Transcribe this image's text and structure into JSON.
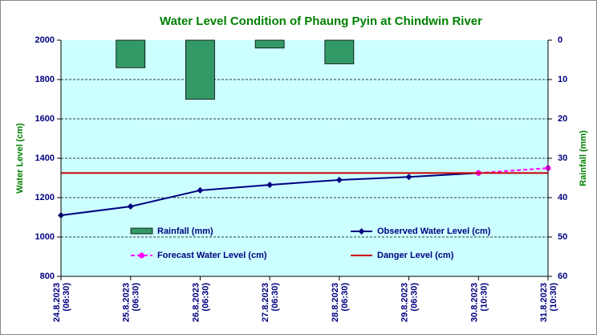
{
  "chart_data": {
    "type": "combo",
    "title": "Water Level Condition of Phaung Pyin at Chindwin River",
    "ylabel": "Water Level (cm)",
    "y2label": "Rainfall (mm)",
    "categories": [
      [
        "24.8.2023",
        "(06:30)"
      ],
      [
        "25.8.2023",
        "(06:30)"
      ],
      [
        "26.8.2023",
        "(06:30)"
      ],
      [
        "27.8.2023",
        "(06:30)"
      ],
      [
        "28.8.2023",
        "(06:30)"
      ],
      [
        "29.8.2023",
        "(06:30)"
      ],
      [
        "30.8.2023",
        "(10:30)"
      ],
      [
        "31.8.2023",
        "(10:30)"
      ]
    ],
    "ylim": [
      800,
      2000
    ],
    "yticks": [
      800,
      1000,
      1200,
      1400,
      1600,
      1800,
      2000
    ],
    "y2lim": [
      60,
      0
    ],
    "y2ticks": [
      0,
      10,
      20,
      30,
      40,
      50,
      60
    ],
    "grid": true,
    "series": [
      {
        "name": "Rainfall (mm)",
        "type": "bar",
        "axis": "y2",
        "color": "#339966",
        "values": [
          0,
          7,
          15,
          2,
          6,
          0,
          0,
          0
        ]
      },
      {
        "name": "Observed Water Level (cm)",
        "type": "line",
        "color": "#000080",
        "marker": "diamond",
        "values": [
          1110,
          1155,
          1237,
          1265,
          1290,
          1305,
          1325,
          null
        ]
      },
      {
        "name": "Forecast Water Level (cm)",
        "type": "line",
        "color": "#ff00ff",
        "marker": "circle",
        "dashed": true,
        "values": [
          null,
          null,
          null,
          null,
          null,
          null,
          1325,
          1350
        ]
      },
      {
        "name": "Danger Level (cm)",
        "type": "line",
        "color": "#cc0000",
        "values": [
          1325,
          1325,
          1325,
          1325,
          1325,
          1325,
          1325,
          1325
        ]
      }
    ]
  }
}
